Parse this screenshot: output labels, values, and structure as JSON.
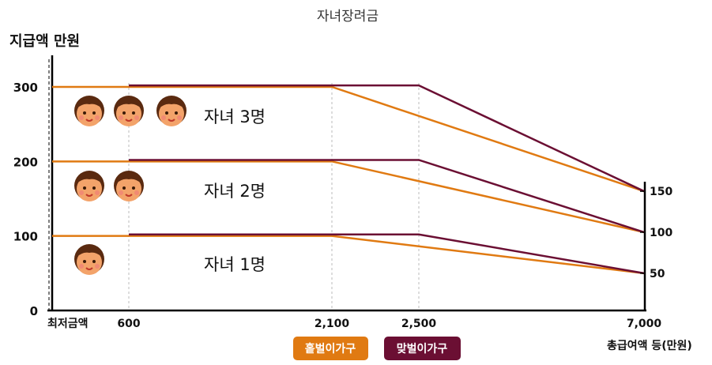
{
  "chart_data": {
    "type": "line",
    "title": "자녀장려금",
    "ylabel": "지급액 만원",
    "xlabel": "총급여액 등(만원)",
    "x_ticks": [
      {
        "label": "최저금액",
        "value": 0
      },
      {
        "label": "600",
        "value": 600
      },
      {
        "label": "2,100",
        "value": 2100
      },
      {
        "label": "2,500",
        "value": 2500
      },
      {
        "label": "7,000",
        "value": 7000
      }
    ],
    "y_ticks_left": [
      "0",
      "100",
      "200",
      "300"
    ],
    "y_ticks_right": [
      "50",
      "100",
      "150"
    ],
    "ylim": [
      0,
      300
    ],
    "xlim": [
      0,
      7000
    ],
    "children_labels": [
      "자녀 1명",
      "자녀 2명",
      "자녀 3명"
    ],
    "series": [
      {
        "name": "홑벌이가구",
        "color": "#e07a12",
        "group": "자녀 1명",
        "points": [
          [
            0,
            100
          ],
          [
            2100,
            100
          ],
          [
            7000,
            50
          ]
        ]
      },
      {
        "name": "맞벌이가구",
        "color": "#6b0f33",
        "group": "자녀 1명",
        "points": [
          [
            600,
            102
          ],
          [
            2500,
            102
          ],
          [
            7000,
            50
          ]
        ]
      },
      {
        "name": "홑벌이가구",
        "color": "#e07a12",
        "group": "자녀 2명",
        "points": [
          [
            0,
            200
          ],
          [
            2100,
            200
          ],
          [
            7000,
            105
          ]
        ]
      },
      {
        "name": "맞벌이가구",
        "color": "#6b0f33",
        "group": "자녀 2명",
        "points": [
          [
            600,
            202
          ],
          [
            2500,
            202
          ],
          [
            7000,
            105
          ]
        ]
      },
      {
        "name": "홑벌이가구",
        "color": "#e07a12",
        "group": "자녀 3명",
        "points": [
          [
            0,
            300
          ],
          [
            2100,
            300
          ],
          [
            7000,
            160
          ]
        ]
      },
      {
        "name": "맞벌이가구",
        "color": "#6b0f33",
        "group": "자녀 3명",
        "points": [
          [
            600,
            302
          ],
          [
            2500,
            302
          ],
          [
            7000,
            160
          ]
        ]
      }
    ],
    "legend": [
      {
        "name": "홑벌이가구",
        "color": "#e07a12"
      },
      {
        "name": "맞벌이가구",
        "color": "#6b0f33"
      }
    ],
    "legend_position": "bottom-center",
    "grid": false
  }
}
